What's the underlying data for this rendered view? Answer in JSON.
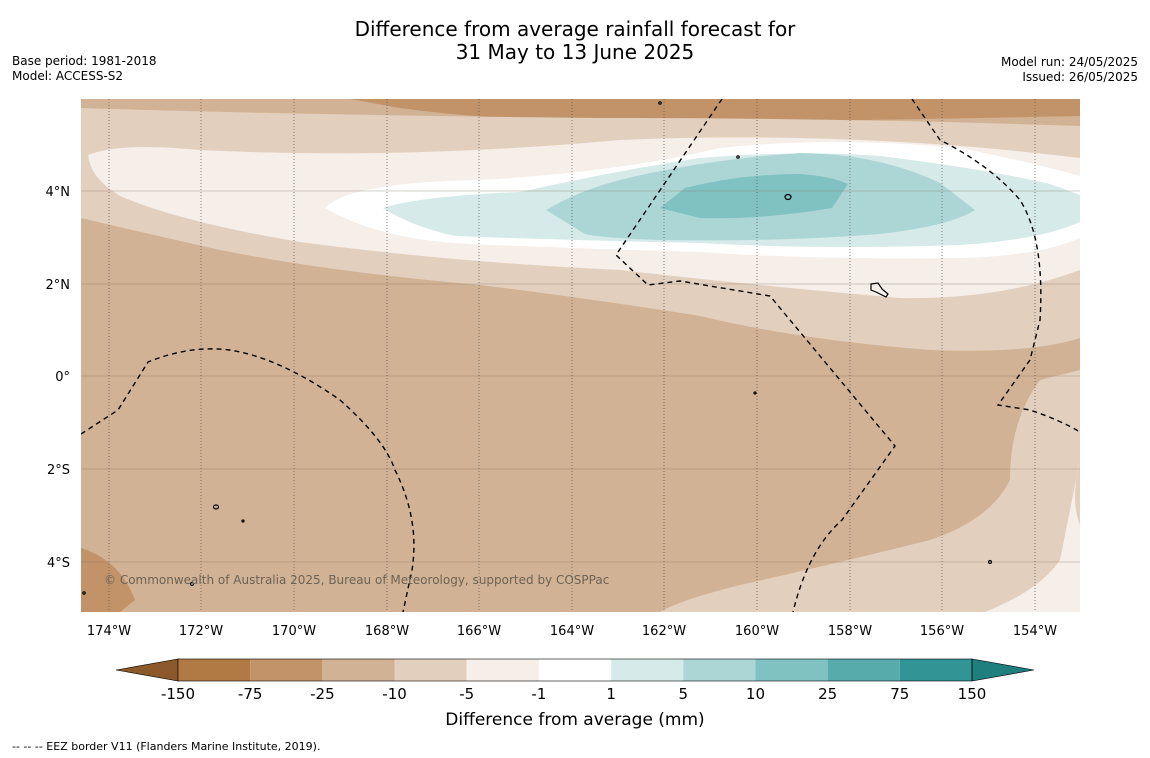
{
  "header": {
    "title_line1": "Difference from average rainfall forecast for",
    "title_line2": "31 May to 13 June 2025",
    "base_period": "Base period: 1981-2018",
    "model": "Model: ACCESS-S2",
    "model_run": "Model run: 24/05/2025",
    "issued": "Issued: 26/05/2025"
  },
  "map": {
    "copyright": "© Commonwealth of Australia 2025, Bureau of Meteorology, supported by COSPPac",
    "lat_labels": [
      "4°N",
      "2°N",
      "0°",
      "2°S",
      "4°S"
    ],
    "lon_labels": [
      "174°W",
      "172°W",
      "170°W",
      "168°W",
      "166°W",
      "164°W",
      "162°W",
      "160°W",
      "158°W",
      "156°W",
      "154°W"
    ]
  },
  "colorbar": {
    "title": "Difference from average (mm)",
    "labels": [
      "-150",
      "-75",
      "-25",
      "-10",
      "-5",
      "-1",
      "1",
      "5",
      "10",
      "25",
      "75",
      "150"
    ],
    "colors": [
      "#8c5a2a",
      "#b07a45",
      "#c29369",
      "#d2b294",
      "#e3cfbe",
      "#f5eee9",
      "#ffffff",
      "#d6eae9",
      "#acd6d6",
      "#80c1c1",
      "#58abab",
      "#319595",
      "#1f7f7f"
    ]
  },
  "footnote": "--  --  -- EEZ border V11 (Flanders Marine Institute, 2019)."
}
